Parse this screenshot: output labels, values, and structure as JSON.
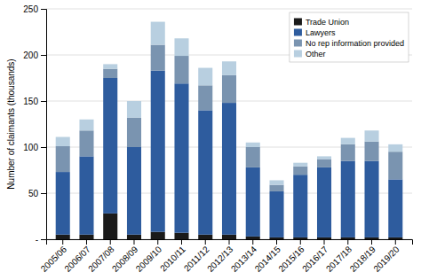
{
  "chart_data": {
    "type": "bar",
    "stacked": true,
    "categories": [
      "2005/06",
      "2006/07",
      "2007/08",
      "2008/09",
      "2009/10",
      "2010/11",
      "2011/12",
      "2012/13",
      "2013/14",
      "2014/15",
      "2015/16",
      "2016/17",
      "2017/18",
      "2018/19",
      "2019/20"
    ],
    "series": [
      {
        "name": "Trade Union",
        "color": "#1a1a1a",
        "values": [
          5,
          5,
          28,
          5,
          8,
          7,
          5,
          5,
          3,
          2,
          2,
          2,
          2,
          2,
          2
        ]
      },
      {
        "name": "Lawyers",
        "color": "#2e5c9e",
        "values": [
          68,
          85,
          147,
          95,
          175,
          162,
          135,
          143,
          75,
          50,
          68,
          76,
          83,
          83,
          63
        ]
      },
      {
        "name": "No rep information provided",
        "color": "#7a94b0",
        "values": [
          28,
          28,
          10,
          32,
          28,
          30,
          27,
          30,
          22,
          7,
          9,
          9,
          18,
          21,
          30
        ]
      },
      {
        "name": "Other",
        "color": "#b8cfe0",
        "values": [
          10,
          12,
          5,
          18,
          25,
          19,
          19,
          15,
          5,
          5,
          4,
          3,
          7,
          12,
          8
        ]
      }
    ],
    "ylabel": "Number of claimants (thousands)",
    "ylim": [
      0,
      250
    ],
    "yticks": [
      {
        "value": 0,
        "label": "-"
      },
      50,
      100,
      150,
      200,
      250
    ],
    "grid": true,
    "legend": "upper right"
  }
}
